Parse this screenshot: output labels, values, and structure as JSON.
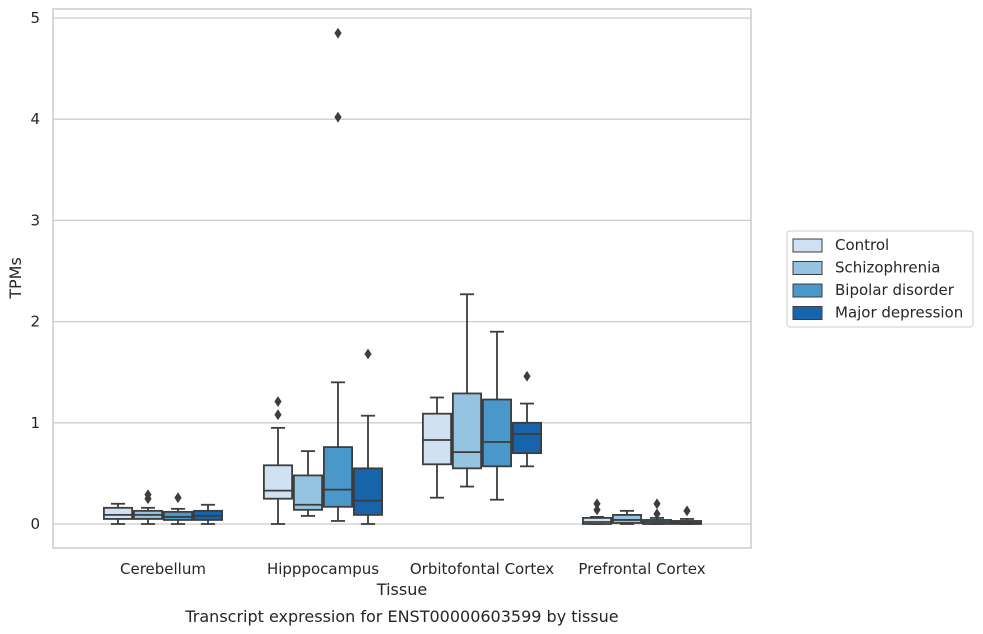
{
  "chart_data": {
    "type": "box",
    "caption": "Transcript expression for ENST00000603599 by tissue",
    "xlabel": "Tissue",
    "ylabel": "TPMs",
    "ylim": [
      -0.23,
      5.1
    ],
    "yticks": [
      0,
      1,
      2,
      3,
      4,
      5
    ],
    "grid": "horizontal",
    "legend_position": "right",
    "categories": [
      "Cerebellum",
      "Hipppocampus",
      "Orbitofontal Cortex",
      "Prefrontal Cortex"
    ],
    "series": [
      {
        "name": "Control",
        "color": "#d0e1f2",
        "boxes": [
          {
            "whisker_low": 0.0,
            "q1": 0.05,
            "median": 0.09,
            "q3": 0.16,
            "whisker_high": 0.2,
            "outliers": []
          },
          {
            "whisker_low": 0.0,
            "q1": 0.25,
            "median": 0.33,
            "q3": 0.58,
            "whisker_high": 0.95,
            "outliers": [
              1.08,
              1.21
            ]
          },
          {
            "whisker_low": 0.26,
            "q1": 0.59,
            "median": 0.83,
            "q3": 1.09,
            "whisker_high": 1.25,
            "outliers": []
          },
          {
            "whisker_low": 0.0,
            "q1": 0.0,
            "median": 0.02,
            "q3": 0.06,
            "whisker_high": 0.07,
            "outliers": [
              0.14,
              0.2
            ]
          }
        ]
      },
      {
        "name": "Schizophrenia",
        "color": "#94c4df",
        "boxes": [
          {
            "whisker_low": 0.0,
            "q1": 0.05,
            "median": 0.09,
            "q3": 0.13,
            "whisker_high": 0.16,
            "outliers": [
              0.25,
              0.29
            ]
          },
          {
            "whisker_low": 0.08,
            "q1": 0.14,
            "median": 0.19,
            "q3": 0.48,
            "whisker_high": 0.72,
            "outliers": []
          },
          {
            "whisker_low": 0.37,
            "q1": 0.55,
            "median": 0.71,
            "q3": 1.29,
            "whisker_high": 2.27,
            "outliers": []
          },
          {
            "whisker_low": 0.0,
            "q1": 0.01,
            "median": 0.04,
            "q3": 0.09,
            "whisker_high": 0.13,
            "outliers": []
          }
        ]
      },
      {
        "name": "Bipolar disorder",
        "color": "#4a98c9",
        "boxes": [
          {
            "whisker_low": 0.0,
            "q1": 0.04,
            "median": 0.07,
            "q3": 0.12,
            "whisker_high": 0.15,
            "outliers": [
              0.26
            ]
          },
          {
            "whisker_low": 0.03,
            "q1": 0.17,
            "median": 0.34,
            "q3": 0.76,
            "whisker_high": 1.4,
            "outliers": [
              4.02,
              4.85
            ]
          },
          {
            "whisker_low": 0.24,
            "q1": 0.57,
            "median": 0.81,
            "q3": 1.23,
            "whisker_high": 1.9,
            "outliers": []
          },
          {
            "whisker_low": 0.0,
            "q1": 0.0,
            "median": 0.02,
            "q3": 0.04,
            "whisker_high": 0.06,
            "outliers": [
              0.1,
              0.2
            ]
          }
        ]
      },
      {
        "name": "Major depression",
        "color": "#1764ab",
        "boxes": [
          {
            "whisker_low": 0.0,
            "q1": 0.04,
            "median": 0.08,
            "q3": 0.13,
            "whisker_high": 0.19,
            "outliers": []
          },
          {
            "whisker_low": 0.0,
            "q1": 0.09,
            "median": 0.23,
            "q3": 0.55,
            "whisker_high": 1.07,
            "outliers": [
              1.68
            ]
          },
          {
            "whisker_low": 0.57,
            "q1": 0.7,
            "median": 0.89,
            "q3": 1.0,
            "whisker_high": 1.19,
            "outliers": [
              1.46
            ]
          },
          {
            "whisker_low": 0.0,
            "q1": 0.0,
            "median": 0.01,
            "q3": 0.03,
            "whisker_high": 0.05,
            "outliers": [
              0.13
            ]
          }
        ]
      }
    ]
  }
}
